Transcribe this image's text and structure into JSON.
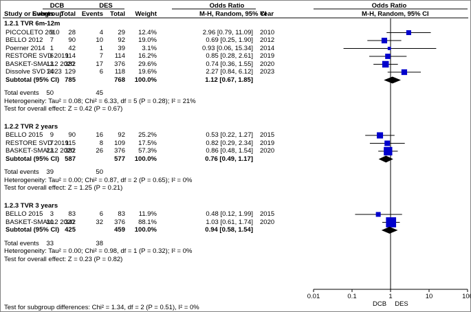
{
  "chart_data": {
    "type": "forest",
    "headers": {
      "group1": "DCB",
      "group2": "DES",
      "col_study": "Study or Subgroup",
      "col_events1": "Events",
      "col_total1": "Total",
      "col_events2": "Events",
      "col_total2": "Total",
      "col_weight": "Weight",
      "col_or_title": "Odds Ratio",
      "col_or_sub": "M-H, Random, 95% CI",
      "col_year": "Year",
      "plot_title": "Odds Ratio",
      "plot_sub": "M-H, Random, 95% CI"
    },
    "subgroups": [
      {
        "title": "1.2.1 TVR 6m-12m",
        "studies": [
          {
            "name": "PICCOLETO 2010",
            "e1": "9",
            "n1": "28",
            "e2": "4",
            "n2": "29",
            "weight": "12.4%",
            "or_text": "2.96 [0.79, 11.09]",
            "year": "2010",
            "or": 2.96,
            "lo": 0.79,
            "hi": 11.09,
            "w": 12.4
          },
          {
            "name": "BELLO 2012",
            "e1": "7",
            "n1": "90",
            "e2": "10",
            "n2": "92",
            "weight": "19.0%",
            "or_text": "0.69 [0.25, 1.90]",
            "year": "2012",
            "or": 0.69,
            "lo": 0.25,
            "hi": 1.9,
            "w": 19.0
          },
          {
            "name": "Poerner 2014",
            "e1": "1",
            "n1": "42",
            "e2": "1",
            "n2": "39",
            "weight": "3.1%",
            "or_text": "0.93 [0.06, 15.34]",
            "year": "2014",
            "or": 0.93,
            "lo": 0.06,
            "hi": 15.34,
            "w": 3.1
          },
          {
            "name": "RESTORE SVD 2019",
            "e1": "6",
            "n1": "114",
            "e2": "7",
            "n2": "114",
            "weight": "16.2%",
            "or_text": "0.85 [0.28, 2.61]",
            "year": "2019",
            "or": 0.85,
            "lo": 0.28,
            "hi": 2.61,
            "w": 16.2
          },
          {
            "name": "BASKET-SMALL2 2020",
            "e1": "13",
            "n1": "382",
            "e2": "17",
            "n2": "376",
            "weight": "29.6%",
            "or_text": "0.74 [0.36, 1.55]",
            "year": "2020",
            "or": 0.74,
            "lo": 0.36,
            "hi": 1.55,
            "w": 29.6
          },
          {
            "name": "Dissolve SVD 2023",
            "e1": "14",
            "n1": "129",
            "e2": "6",
            "n2": "118",
            "weight": "19.6%",
            "or_text": "2.27 [0.84, 6.12]",
            "year": "2023",
            "or": 2.27,
            "lo": 0.84,
            "hi": 6.12,
            "w": 19.6
          }
        ],
        "subtotal": {
          "label": "Subtotal (95% CI)",
          "n1": "785",
          "n2": "768",
          "weight": "100.0%",
          "or_text": "1.12 [0.67, 1.85]",
          "or": 1.12,
          "lo": 0.67,
          "hi": 1.85
        },
        "total_events": {
          "label": "Total events",
          "e1": "50",
          "e2": "45"
        },
        "heterogeneity": "Heterogeneity: Tau² = 0.08; Chi² = 6.33, df = 5 (P = 0.28); I² = 21%",
        "overall_effect": "Test for overall effect: Z = 0.42 (P = 0.67)"
      },
      {
        "title": "1.2.2 TVR 2 years",
        "studies": [
          {
            "name": "BELLO 2015",
            "e1": "9",
            "n1": "90",
            "e2": "16",
            "n2": "92",
            "weight": "25.2%",
            "or_text": "0.53 [0.22, 1.27]",
            "year": "2015",
            "or": 0.53,
            "lo": 0.22,
            "hi": 1.27,
            "w": 25.2
          },
          {
            "name": "RESTORE SVD 2019",
            "e1": "7",
            "n1": "115",
            "e2": "8",
            "n2": "109",
            "weight": "17.5%",
            "or_text": "0.82 [0.29, 2.34]",
            "year": "2019",
            "or": 0.82,
            "lo": 0.29,
            "hi": 2.34,
            "w": 17.5
          },
          {
            "name": "BASKET-SMALL2 2020",
            "e1": "23",
            "n1": "382",
            "e2": "26",
            "n2": "376",
            "weight": "57.3%",
            "or_text": "0.86 [0.48, 1.54]",
            "year": "2020",
            "or": 0.86,
            "lo": 0.48,
            "hi": 1.54,
            "w": 57.3
          }
        ],
        "subtotal": {
          "label": "Subtotal (95% CI)",
          "n1": "587",
          "n2": "577",
          "weight": "100.0%",
          "or_text": "0.76 [0.49, 1.17]",
          "or": 0.76,
          "lo": 0.49,
          "hi": 1.17
        },
        "total_events": {
          "label": "Total events",
          "e1": "39",
          "e2": "50"
        },
        "heterogeneity": "Heterogeneity: Tau² = 0.00; Chi² = 0.87, df = 2 (P = 0.65); I² = 0%",
        "overall_effect": "Test for overall effect: Z = 1.25 (P = 0.21)"
      },
      {
        "title": "1.2.3 TVR 3 years",
        "studies": [
          {
            "name": "BELLO 2015",
            "e1": "3",
            "n1": "83",
            "e2": "6",
            "n2": "83",
            "weight": "11.9%",
            "or_text": "0.48 [0.12, 1.99]",
            "year": "2015",
            "or": 0.48,
            "lo": 0.12,
            "hi": 1.99,
            "w": 11.9
          },
          {
            "name": "BASKET-SMALL2 2020",
            "e1": "30",
            "n1": "342",
            "e2": "32",
            "n2": "376",
            "weight": "88.1%",
            "or_text": "1.03 [0.61, 1.74]",
            "year": "2020",
            "or": 1.03,
            "lo": 0.61,
            "hi": 1.74,
            "w": 88.1
          }
        ],
        "subtotal": {
          "label": "Subtotal (95% CI)",
          "n1": "425",
          "n2": "459",
          "weight": "100.0%",
          "or_text": "0.94 [0.58, 1.54]",
          "or": 0.94,
          "lo": 0.58,
          "hi": 1.54
        },
        "total_events": {
          "label": "Total events",
          "e1": "33",
          "e2": "38"
        },
        "heterogeneity": "Heterogeneity: Tau² = 0.00; Chi² = 0.98, df = 1 (P = 0.32); I² = 0%",
        "overall_effect": "Test for overall effect: Z = 0.23 (P = 0.82)"
      }
    ],
    "axis": {
      "scale": "log",
      "ticks": [
        0.01,
        0.1,
        1,
        10,
        100
      ],
      "tick_labels": [
        "0.01",
        "0.1",
        "1",
        "10",
        "100"
      ],
      "label_left": "DCB",
      "label_right": "DES"
    },
    "footer": "Test for subgroup differences: Chi² = 1.34, df = 2 (P = 0.51), I² = 0%",
    "colors": {
      "study_marker": "#0000cc",
      "summary_marker": "#000000",
      "line": "#000000",
      "border": "#808080"
    }
  }
}
